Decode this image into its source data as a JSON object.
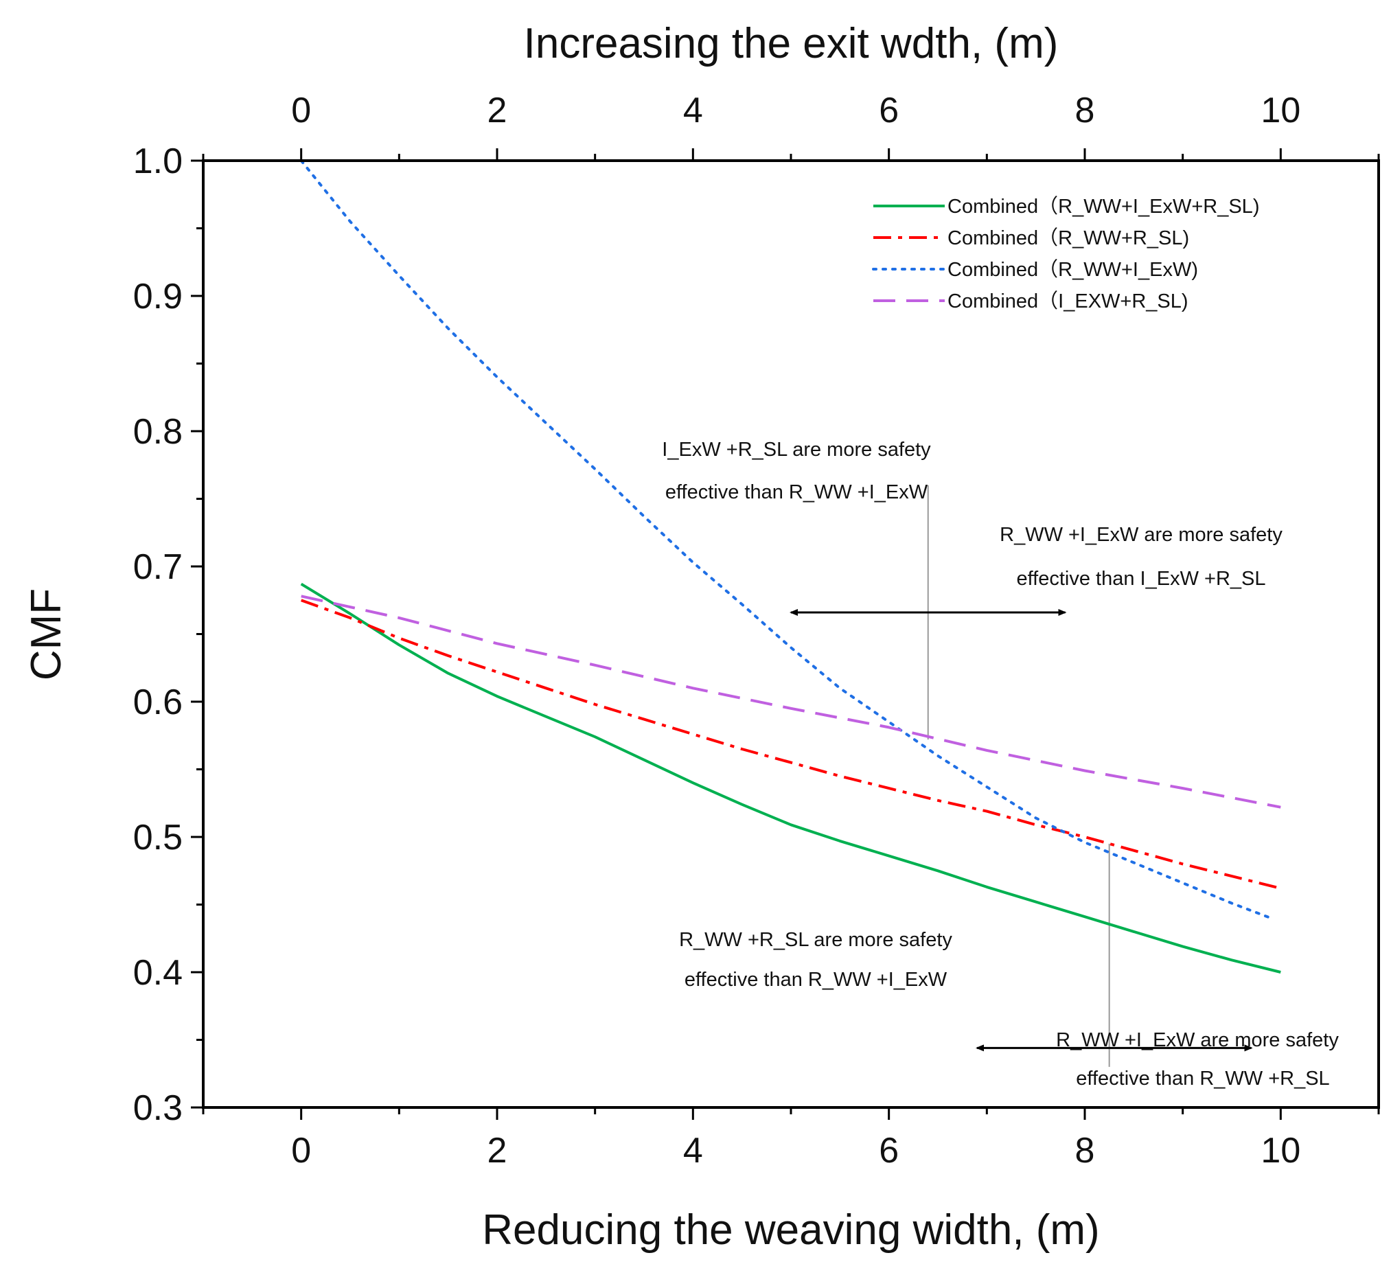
{
  "chart_data": {
    "type": "line",
    "title": "",
    "xlabel": "Reducing the weaving width, (m)",
    "x2label": "Increasing the exit wdth, (m)",
    "ylabel": "CMF",
    "xlim": [
      -1,
      11
    ],
    "ylim": [
      0.3,
      1.0
    ],
    "x_ticks": [
      0,
      2,
      4,
      6,
      8,
      10
    ],
    "x2_ticks": [
      0,
      2,
      4,
      6,
      8,
      10
    ],
    "y_ticks": [
      0.3,
      0.4,
      0.5,
      0.6,
      0.7,
      0.8,
      0.9,
      1.0
    ],
    "x_tick_labels": [
      "0",
      "2",
      "4",
      "6",
      "8",
      "10"
    ],
    "x2_tick_labels": [
      "0",
      "2",
      "4",
      "6",
      "8",
      "10"
    ],
    "y_tick_labels": [
      "0.3",
      "0.4",
      "0.5",
      "0.6",
      "0.7",
      "0.8",
      "0.9",
      "1.0"
    ],
    "legend_position": "top-right",
    "series": [
      {
        "name": "Combined（R_WW+I_ExW+R_SL)",
        "color": "#00b050",
        "style": "solid",
        "x": [
          0,
          0.5,
          1,
          1.5,
          2,
          2.5,
          3,
          3.5,
          4,
          4.5,
          5,
          5.5,
          6,
          6.5,
          7,
          7.5,
          8,
          8.5,
          9,
          9.5,
          10
        ],
        "values": [
          0.687,
          0.665,
          0.642,
          0.621,
          0.604,
          0.589,
          0.574,
          0.557,
          0.54,
          0.524,
          0.509,
          0.497,
          0.486,
          0.475,
          0.463,
          0.452,
          0.441,
          0.43,
          0.419,
          0.409,
          0.4
        ]
      },
      {
        "name": "Combined（R_WW+R_SL)",
        "color": "#ff0000",
        "style": "dashdot",
        "x": [
          0,
          0.5,
          1,
          1.5,
          2,
          2.5,
          3,
          3.5,
          4,
          4.5,
          5,
          5.5,
          6,
          6.5,
          7,
          7.5,
          8,
          8.5,
          9,
          9.5,
          10
        ],
        "values": [
          0.675,
          0.662,
          0.647,
          0.634,
          0.622,
          0.61,
          0.598,
          0.587,
          0.576,
          0.565,
          0.555,
          0.545,
          0.536,
          0.527,
          0.519,
          0.509,
          0.5,
          0.49,
          0.48,
          0.471,
          0.462
        ]
      },
      {
        "name": "Combined（R_WW+I_ExW)",
        "color": "#1f6fe5",
        "style": "dotted",
        "x": [
          0,
          0.5,
          1,
          1.5,
          2,
          2.5,
          3,
          3.5,
          4,
          4.5,
          5,
          5.5,
          6,
          6.5,
          7,
          7.5,
          8,
          8.5,
          9,
          9.5,
          9.9
        ],
        "values": [
          1.0,
          0.955,
          0.915,
          0.876,
          0.84,
          0.806,
          0.772,
          0.737,
          0.703,
          0.672,
          0.64,
          0.61,
          0.585,
          0.56,
          0.537,
          0.514,
          0.496,
          0.481,
          0.466,
          0.451,
          0.44
        ]
      },
      {
        "name": "Combined（I_EXW+R_SL)",
        "color": "#c060e0",
        "style": "dashed",
        "x": [
          0,
          1,
          2,
          3,
          4,
          5,
          6,
          7,
          8,
          9,
          10
        ],
        "values": [
          0.678,
          0.662,
          0.643,
          0.627,
          0.61,
          0.595,
          0.581,
          0.564,
          0.549,
          0.536,
          0.522
        ]
      }
    ],
    "annotations": [
      {
        "lines": [
          "I_ExW +R_SL are more safety",
          "effective than R_WW +I_ExW"
        ]
      },
      {
        "lines": [
          "R_WW +I_ExW  are more safety",
          "effective than I_ExW +R_SL"
        ]
      },
      {
        "lines": [
          "R_WW +R_SL are more safety",
          "effective than R_WW +I_ExW"
        ]
      },
      {
        "lines": [
          "R_WW +I_ExW are more safety",
          "effective than R_WW +R_SL"
        ]
      }
    ],
    "reference_lines": [
      {
        "x": 6.4,
        "y_from": 0.572,
        "y_to": 0.76
      },
      {
        "x": 8.25,
        "y_from": 0.33,
        "y_to": 0.495
      }
    ],
    "range_arrows": [
      {
        "x_from": 5.0,
        "x_to": 7.8,
        "y": 0.666
      },
      {
        "x_from": 6.9,
        "x_to": 9.7,
        "y": 0.344
      }
    ]
  }
}
